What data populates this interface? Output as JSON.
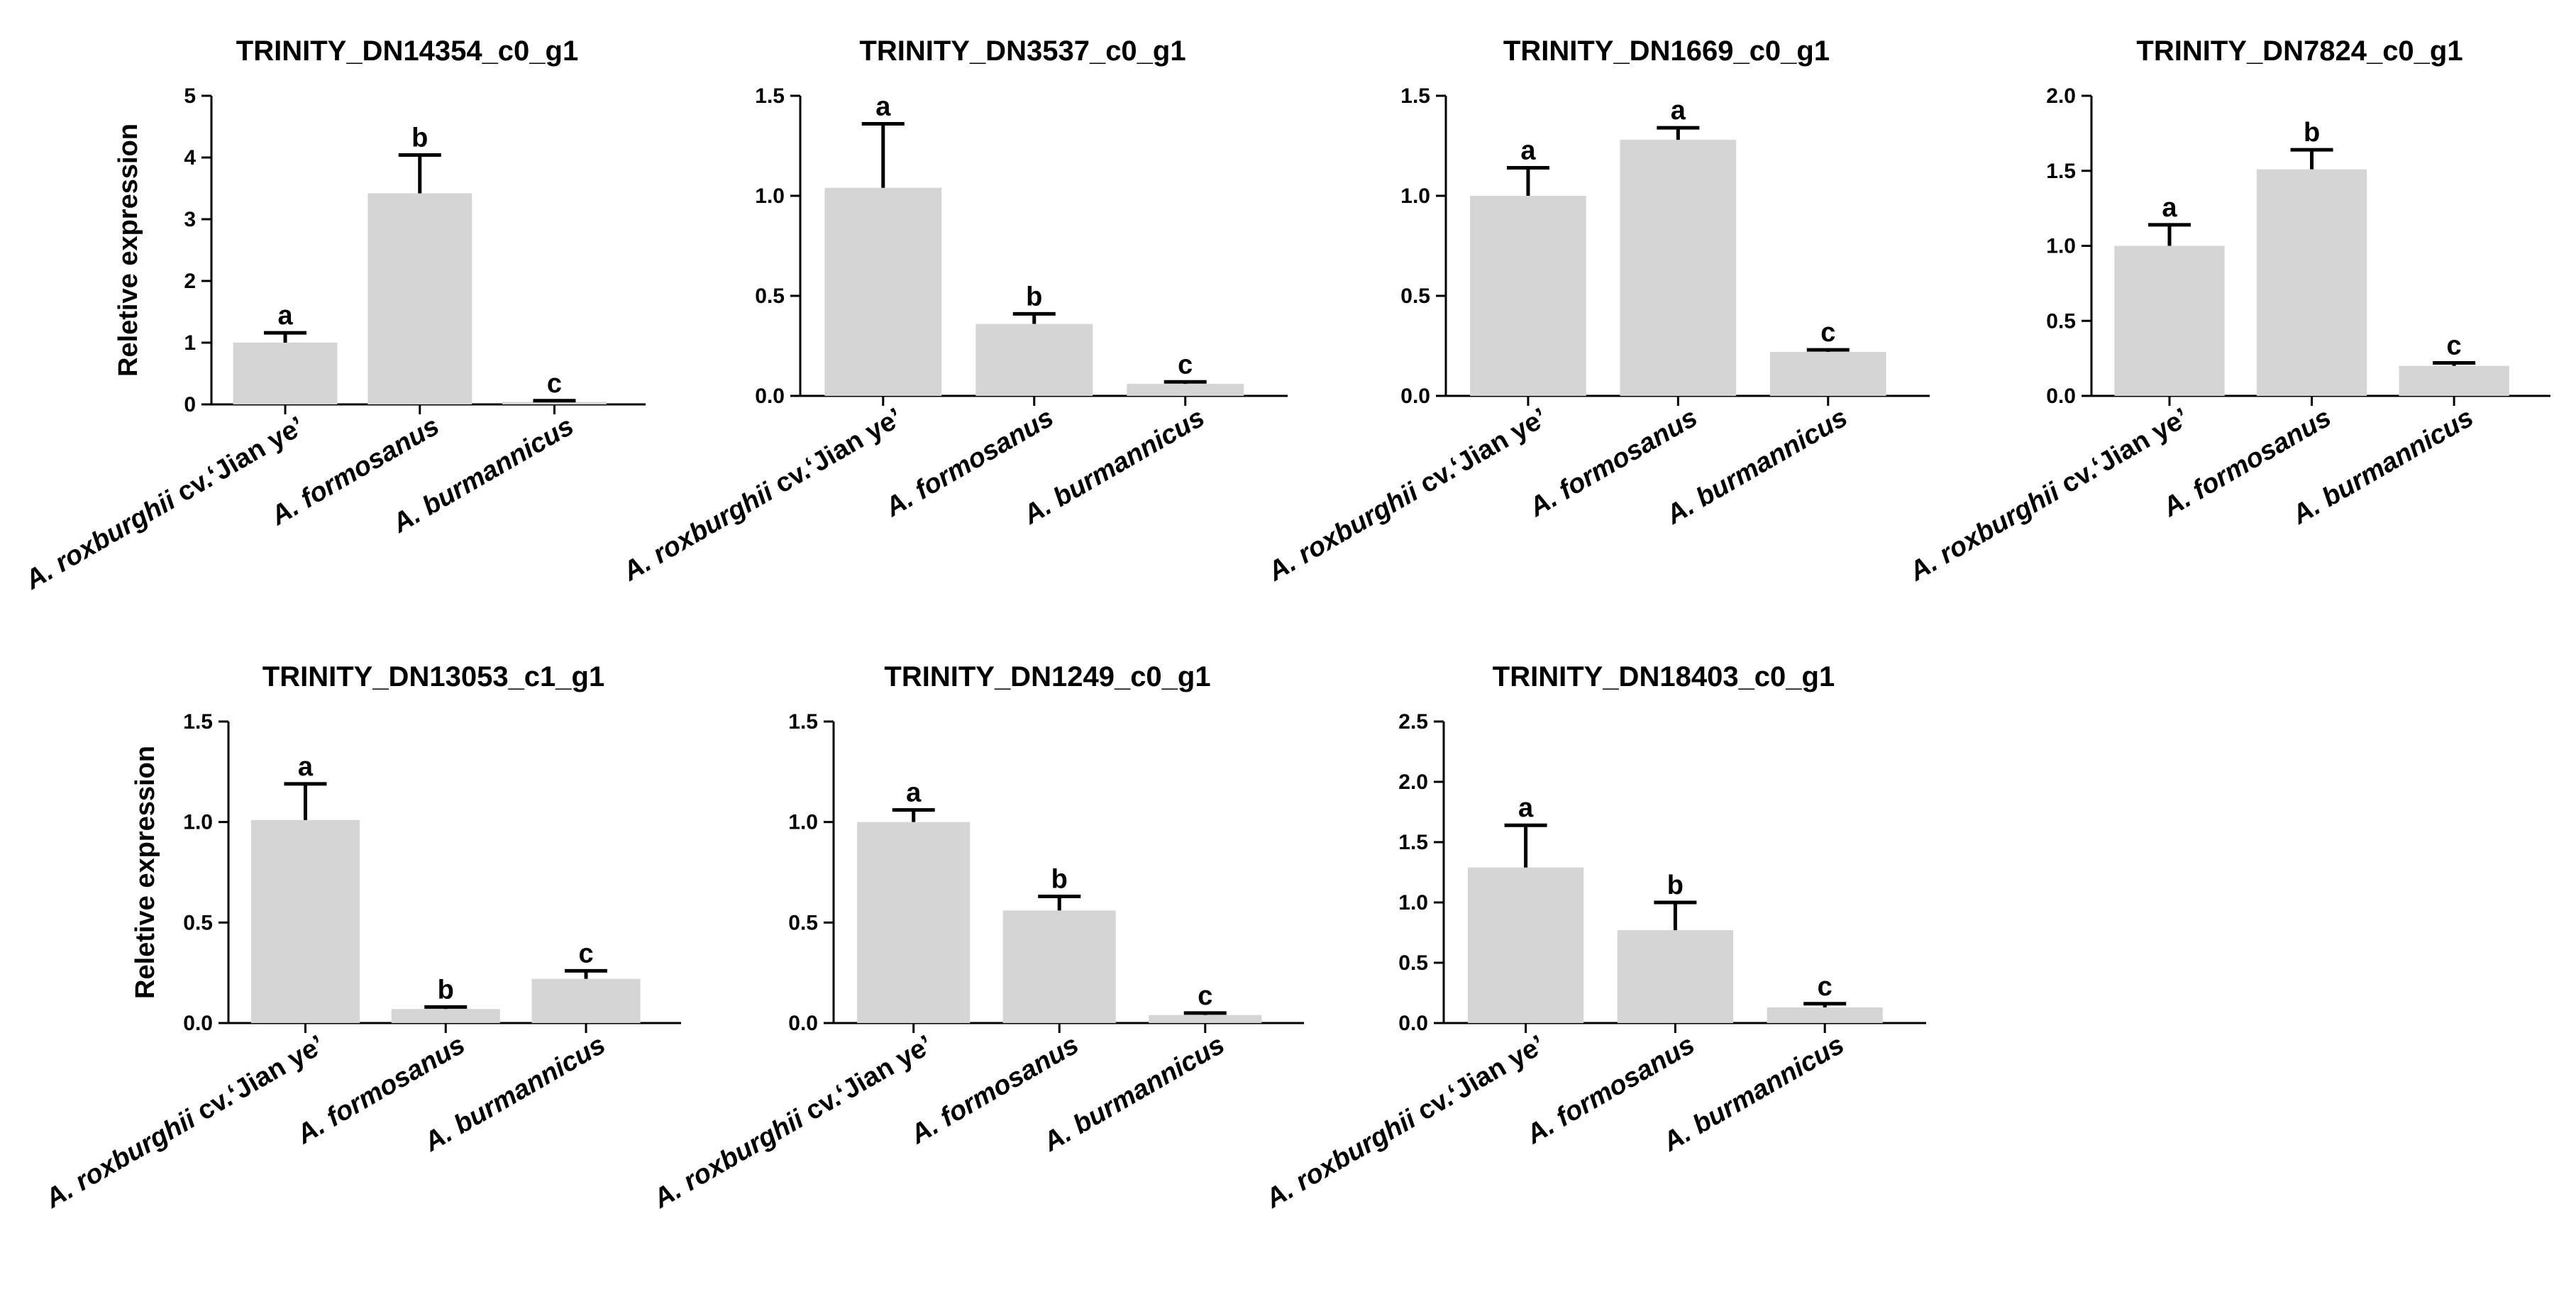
{
  "chart_data": [
    {
      "type": "bar",
      "title": "TRINITY_DN14354_c0_g1",
      "ylabel": "Reletive expression",
      "categories": [
        "A. roxburghii cv.‘Jian ye’",
        "A. formosanus",
        "A. burmannicus"
      ],
      "values": [
        1.0,
        3.42,
        0.04
      ],
      "errors": [
        0.16,
        0.62,
        0.02
      ],
      "letters": [
        "a",
        "b",
        "c"
      ],
      "ylim": [
        0,
        5
      ],
      "yticks": [
        "0",
        "1",
        "2",
        "3",
        "4",
        "5"
      ]
    },
    {
      "type": "bar",
      "title": "TRINITY_DN3537_c0_g1",
      "ylabel": "",
      "categories": [
        "A. roxburghii cv.‘Jian ye’",
        "A. formosanus",
        "A. burmannicus"
      ],
      "values": [
        1.04,
        0.36,
        0.06
      ],
      "errors": [
        0.32,
        0.05,
        0.01
      ],
      "letters": [
        "a",
        "b",
        "c"
      ],
      "ylim": [
        0,
        1.5
      ],
      "yticks": [
        "0.0",
        "0.5",
        "1.0",
        "1.5"
      ]
    },
    {
      "type": "bar",
      "title": "TRINITY_DN1669_c0_g1",
      "ylabel": "",
      "categories": [
        "A. roxburghii cv.‘Jian ye’",
        "A. formosanus",
        "A. burmannicus"
      ],
      "values": [
        1.0,
        1.28,
        0.22
      ],
      "errors": [
        0.14,
        0.06,
        0.01
      ],
      "letters": [
        "a",
        "a",
        "c"
      ],
      "ylim": [
        0,
        1.5
      ],
      "yticks": [
        "0.0",
        "0.5",
        "1.0",
        "1.5"
      ]
    },
    {
      "type": "bar",
      "title": "TRINITY_DN7824_c0_g1",
      "ylabel": "",
      "categories": [
        "A. roxburghii cv.‘Jian ye’",
        "A. formosanus",
        "A. burmannicus"
      ],
      "values": [
        1.0,
        1.51,
        0.2
      ],
      "errors": [
        0.14,
        0.13,
        0.02
      ],
      "letters": [
        "a",
        "b",
        "c"
      ],
      "ylim": [
        0,
        2.0
      ],
      "yticks": [
        "0.0",
        "0.5",
        "1.0",
        "1.5",
        "2.0"
      ]
    },
    {
      "type": "bar",
      "title": "TRINITY_DN13053_c1_g1",
      "ylabel": "Reletive expression",
      "categories": [
        "A. roxburghii cv.‘Jian ye’",
        "A. formosanus",
        "A. burmannicus"
      ],
      "values": [
        1.01,
        0.07,
        0.22
      ],
      "errors": [
        0.18,
        0.01,
        0.04
      ],
      "letters": [
        "a",
        "b",
        "c"
      ],
      "ylim": [
        0,
        1.5
      ],
      "yticks": [
        "0.0",
        "0.5",
        "1.0",
        "1.5"
      ]
    },
    {
      "type": "bar",
      "title": "TRINITY_DN1249_c0_g1",
      "ylabel": "",
      "categories": [
        "A. roxburghii cv.‘Jian ye’",
        "A. formosanus",
        "A. burmannicus"
      ],
      "values": [
        1.0,
        0.56,
        0.04
      ],
      "errors": [
        0.06,
        0.07,
        0.01
      ],
      "letters": [
        "a",
        "b",
        "c"
      ],
      "ylim": [
        0,
        1.5
      ],
      "yticks": [
        "0.0",
        "0.5",
        "1.0",
        "1.5"
      ]
    },
    {
      "type": "bar",
      "title": "TRINITY_DN18403_c0_g1",
      "ylabel": "",
      "categories": [
        "A. roxburghii cv.‘Jian ye’",
        "A. formosanus",
        "A. burmannicus"
      ],
      "values": [
        1.29,
        0.77,
        0.13
      ],
      "errors": [
        0.35,
        0.23,
        0.03
      ],
      "letters": [
        "a",
        "b",
        "c"
      ],
      "ylim": [
        0,
        2.5
      ],
      "yticks": [
        "0.0",
        "0.5",
        "1.0",
        "1.5",
        "2.0",
        "2.5"
      ]
    }
  ]
}
